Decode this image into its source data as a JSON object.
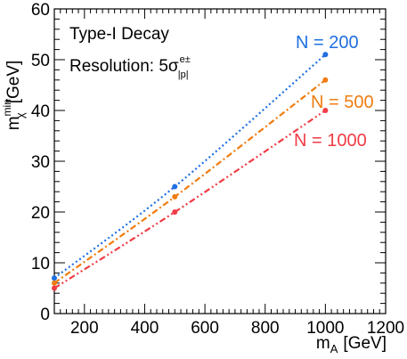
{
  "chart_data": {
    "type": "line",
    "xlabel": "m",
    "xlabel_sub": "A",
    "xlabel_unit": "[GeV]",
    "ylabel": "m",
    "ylabel_sup": "min",
    "ylabel_sub": "χ",
    "ylabel_unit": "[GeV]",
    "xlim": [
      100,
      1200
    ],
    "ylim": [
      0,
      60
    ],
    "xticks": [
      200,
      400,
      600,
      800,
      1000,
      1200
    ],
    "yticks": [
      0,
      10,
      20,
      30,
      40,
      50,
      60
    ],
    "annotations": {
      "line1": "Type-I Decay",
      "line2_prefix": "Resolution: 5σ",
      "line2_sup": "e±",
      "line2_sub": "|p|"
    },
    "series": [
      {
        "name": "N = 200",
        "color": "#1f6fe0",
        "x": [
          100,
          500,
          1000
        ],
        "y": [
          7.0,
          25.0,
          51.0
        ]
      },
      {
        "name": "N = 500",
        "color": "#f07c10",
        "x": [
          100,
          500,
          1000
        ],
        "y": [
          6.0,
          23.0,
          46.0
        ]
      },
      {
        "name": "N = 1000",
        "color": "#f03c46",
        "x": [
          100,
          500,
          1000
        ],
        "y": [
          5.0,
          20.0,
          40.0
        ]
      }
    ],
    "grid": false,
    "legend": "inline labels right"
  }
}
